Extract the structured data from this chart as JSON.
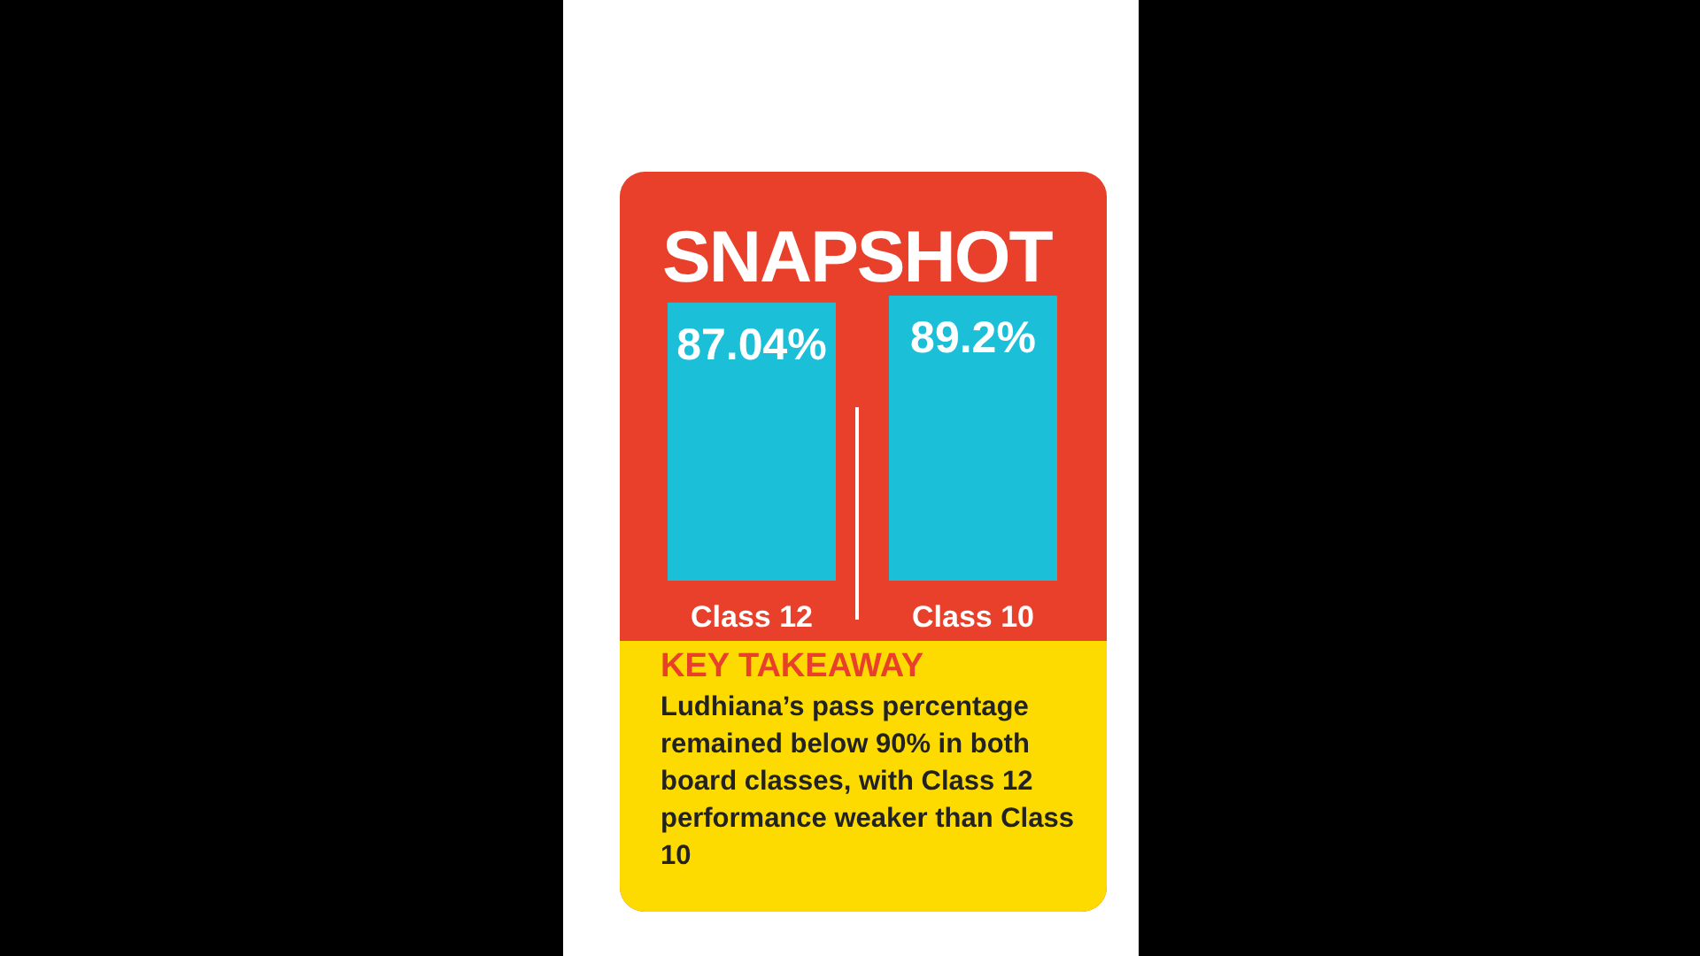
{
  "chart_data": {
    "type": "bar",
    "title": "SNAPSHOT",
    "categories": [
      "Class 12",
      "Class 10"
    ],
    "values": [
      87.04,
      89.2
    ],
    "value_labels": [
      "87.04%",
      "89.2%"
    ],
    "colors": [
      "#1bbfd8",
      "#1bbfd8"
    ],
    "annotations": [
      "KEY TAKEAWAY",
      "Ludhiana’s pass percentage remained below 90% in both board classes, with Class 12 performance weaker than Class 10"
    ]
  }
}
